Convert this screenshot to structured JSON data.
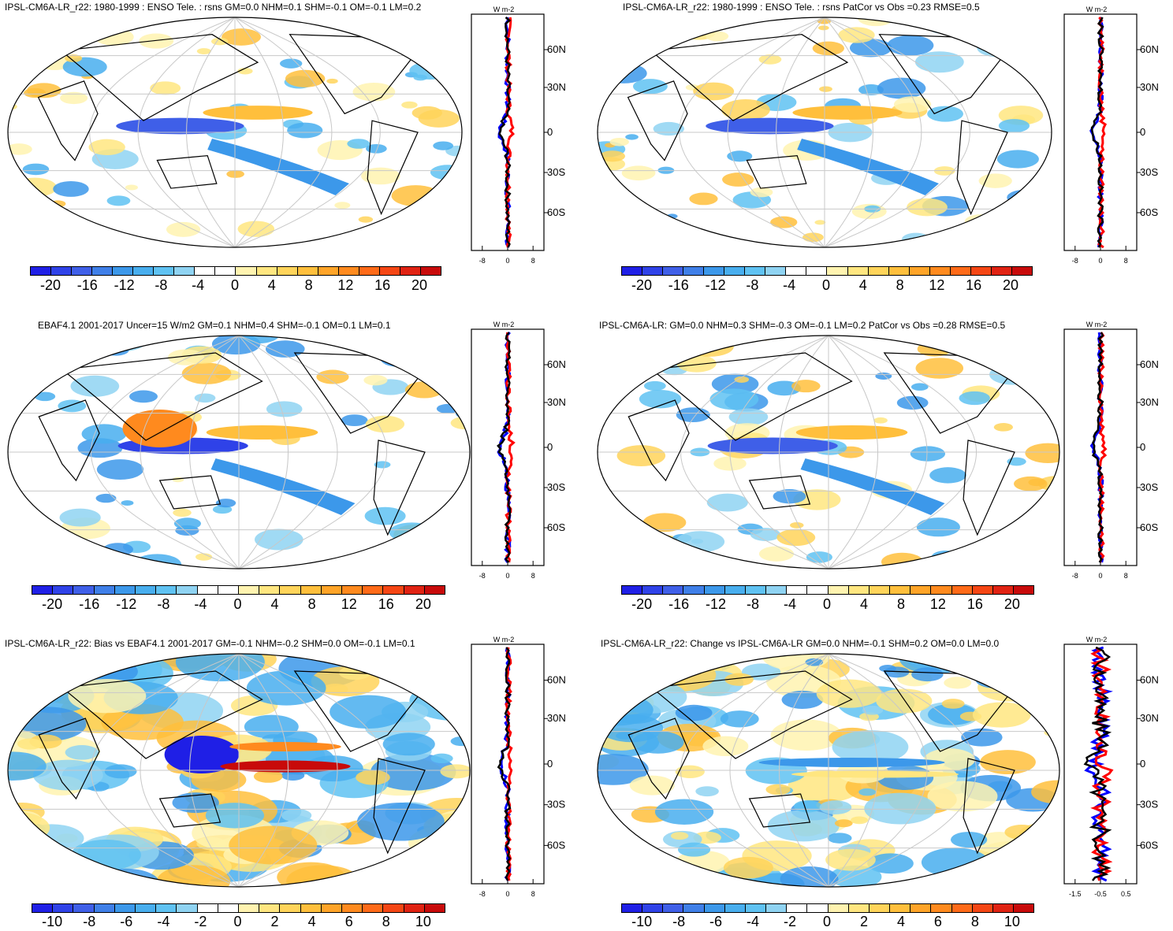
{
  "panels": [
    {
      "title": "IPSL-CM6A-LR_r22: 1980-1999 : ENSO Tele. : rsns GM=0.0 NHM=0.1 SHM=-0.1 OM=-0.1 LM=0.2",
      "cbar": [
        "-20",
        "-16",
        "-12",
        "-8",
        "-4",
        "0",
        "4",
        "8",
        "12",
        "16",
        "20"
      ],
      "units": "W m-2",
      "lat": [
        "60N",
        "30N",
        "0",
        "30S",
        "60S"
      ],
      "xticks": [
        "-8",
        "0",
        "8"
      ]
    },
    {
      "title": "IPSL-CM6A-LR_r22: 1980-1999 : ENSO Tele. : rsns PatCor vs Obs =0.23 RMSE=0.5",
      "cbar": [
        "-20",
        "-16",
        "-12",
        "-8",
        "-4",
        "0",
        "4",
        "8",
        "12",
        "16",
        "20"
      ],
      "units": "W m-2",
      "lat": [
        "60N",
        "30N",
        "0",
        "30S",
        "60S"
      ],
      "xticks": [
        "-8",
        "0",
        "8"
      ]
    },
    {
      "title": "EBAF4.1 2001-2017 Uncer=15 W/m2 GM=0.1 NHM=0.4 SHM=-0.1 OM=0.1 LM=0.1",
      "cbar": [
        "-20",
        "-16",
        "-12",
        "-8",
        "-4",
        "0",
        "4",
        "8",
        "12",
        "16",
        "20"
      ],
      "units": "W m-2",
      "lat": [
        "60N",
        "30N",
        "0",
        "30S",
        "60S"
      ],
      "xticks": [
        "-8",
        "0",
        "8"
      ]
    },
    {
      "title": "IPSL-CM6A-LR: GM=0.0 NHM=0.3 SHM=-0.3 OM=-0.1 LM=0.2 PatCor vs Obs =0.28 RMSE=0.5",
      "cbar": [
        "-20",
        "-16",
        "-12",
        "-8",
        "-4",
        "0",
        "4",
        "8",
        "12",
        "16",
        "20"
      ],
      "units": "W m-2",
      "lat": [
        "60N",
        "30N",
        "0",
        "30S",
        "60S"
      ],
      "xticks": [
        "-8",
        "0",
        "8"
      ]
    },
    {
      "title": "IPSL-CM6A-LR_r22: Bias vs EBAF4.1 2001-2017 GM=-0.1 NHM=-0.2 SHM=0.0 OM=-0.1 LM=0.1",
      "cbar": [
        "-10",
        "-8",
        "-6",
        "-4",
        "-2",
        "0",
        "2",
        "4",
        "6",
        "8",
        "10"
      ],
      "units": "W m-2",
      "lat": [
        "60N",
        "30N",
        "0",
        "30S",
        "60S"
      ],
      "xticks": [
        "-8",
        "0",
        "8"
      ]
    },
    {
      "title": "IPSL-CM6A-LR_r22: Change vs IPSL-CM6A-LR GM=0.0 NHM=-0.1 SHM=0.2 OM=0.0 LM=0.0",
      "cbar": [
        "-10",
        "-8",
        "-6",
        "-4",
        "-2",
        "0",
        "2",
        "4",
        "6",
        "8",
        "10"
      ],
      "units": "W m-2",
      "lat": [
        "60N",
        "30N",
        "0",
        "30S",
        "60S"
      ],
      "xticks": [
        "-1.5",
        "-0.5",
        "0.5"
      ]
    }
  ],
  "colors": {
    "palette": [
      "#1f1fe6",
      "#2f42e8",
      "#3f5fe8",
      "#3f7fe8",
      "#3c98ea",
      "#48aeee",
      "#5fc2f2",
      "#8fd3f2",
      "#ffffff",
      "#ffffff",
      "#fff3b0",
      "#ffe680",
      "#ffd45a",
      "#ffbf3c",
      "#ffa428",
      "#ff8a1e",
      "#ff6a18",
      "#f54614",
      "#e02212",
      "#c80a0a"
    ],
    "line_model": "#000000",
    "line_obs": "#ff0000",
    "line_ref": "#0000ff"
  }
}
